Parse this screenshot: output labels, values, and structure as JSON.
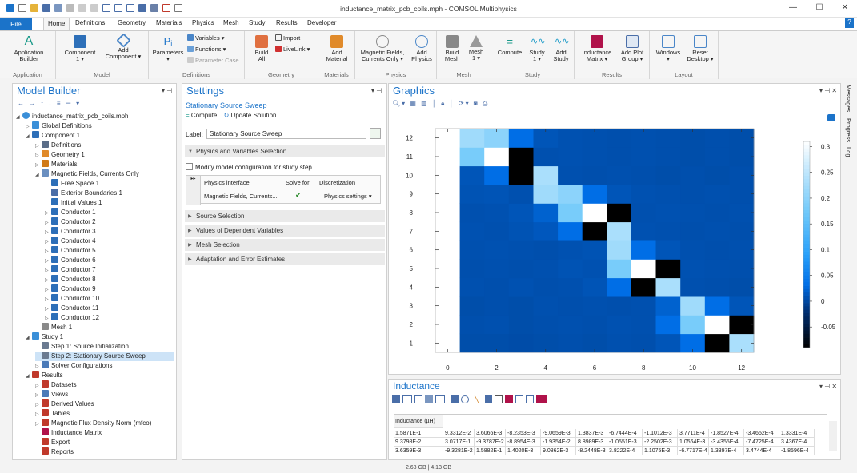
{
  "window": {
    "title": "inductance_matrix_pcb_coils.mph - COMSOL Multiphysics",
    "minimize": "—",
    "maximize": "☐",
    "close": "✕",
    "help": "?"
  },
  "menu": {
    "file": "File",
    "tabs": [
      "Home",
      "Definitions",
      "Geometry",
      "Materials",
      "Physics",
      "Mesh",
      "Study",
      "Results",
      "Developer"
    ]
  },
  "ribbon": {
    "groups": [
      "Application",
      "Model",
      "Definitions",
      "Geometry",
      "Materials",
      "Physics",
      "Mesh",
      "Study",
      "Results",
      "Layout"
    ],
    "application_builder": [
      "Application",
      "Builder"
    ],
    "component": [
      "Component",
      "1 ▾"
    ],
    "add_component": [
      "Add",
      "Component ▾"
    ],
    "parameters": [
      "Parameters",
      "▾"
    ],
    "variables": "Variables ▾",
    "functions": "Functions ▾",
    "parameter_case": "Parameter Case",
    "build_all": [
      "Build",
      "All"
    ],
    "import": "Import",
    "livelink": "LiveLink ▾",
    "add_material": [
      "Add",
      "Material"
    ],
    "magnetic_fields": [
      "Magnetic Fields,",
      "Currents Only ▾"
    ],
    "add_physics": [
      "Add",
      "Physics"
    ],
    "build_mesh": [
      "Build",
      "Mesh"
    ],
    "mesh": [
      "Mesh",
      "1 ▾"
    ],
    "compute": "Compute",
    "study": [
      "Study",
      "1 ▾"
    ],
    "add_study": [
      "Add",
      "Study"
    ],
    "inductance_matrix": [
      "Inductance",
      "Matrix ▾"
    ],
    "add_plot_group": [
      "Add Plot",
      "Group ▾"
    ],
    "windows": [
      "Windows",
      "▾"
    ],
    "reset_desktop": [
      "Reset",
      "Desktop ▾"
    ]
  },
  "model_builder": {
    "title": "Model Builder",
    "root": "inductance_matrix_pcb_coils.mph",
    "items": [
      {
        "label": "Global Definitions",
        "level": 1,
        "color": "#3a8fd8"
      },
      {
        "label": "Component 1",
        "level": 1,
        "color": "#2d6fb8"
      },
      {
        "label": "Definitions",
        "level": 2,
        "color": "#5a6d88"
      },
      {
        "label": "Geometry 1",
        "level": 2,
        "color": "#e08a2a"
      },
      {
        "label": "Materials",
        "level": 2,
        "color": "#d07a18"
      },
      {
        "label": "Magnetic Fields, Currents Only",
        "level": 2,
        "color": "#6a8fc0"
      },
      {
        "label": "Free Space 1",
        "level": 3,
        "color": "#2d6fb8"
      },
      {
        "label": "Exterior Boundaries 1",
        "level": 3,
        "color": "#4a6ea8"
      },
      {
        "label": "Initial Values 1",
        "level": 3,
        "color": "#2d6fb8"
      },
      {
        "label": "Conductor 1",
        "level": 3,
        "color": "#2d6fb8"
      },
      {
        "label": "Conductor 2",
        "level": 3,
        "color": "#2d6fb8"
      },
      {
        "label": "Conductor 3",
        "level": 3,
        "color": "#2d6fb8"
      },
      {
        "label": "Conductor 4",
        "level": 3,
        "color": "#2d6fb8"
      },
      {
        "label": "Conductor 5",
        "level": 3,
        "color": "#2d6fb8"
      },
      {
        "label": "Conductor 6",
        "level": 3,
        "color": "#2d6fb8"
      },
      {
        "label": "Conductor 7",
        "level": 3,
        "color": "#2d6fb8"
      },
      {
        "label": "Conductor 8",
        "level": 3,
        "color": "#2d6fb8"
      },
      {
        "label": "Conductor 9",
        "level": 3,
        "color": "#2d6fb8"
      },
      {
        "label": "Conductor 10",
        "level": 3,
        "color": "#2d6fb8"
      },
      {
        "label": "Conductor 11",
        "level": 3,
        "color": "#2d6fb8"
      },
      {
        "label": "Conductor 12",
        "level": 3,
        "color": "#2d6fb8"
      },
      {
        "label": "Mesh 1",
        "level": 2,
        "color": "#8a8a8a"
      },
      {
        "label": "Study 1",
        "level": 1,
        "color": "#3a8fd8"
      },
      {
        "label": "Step 1: Source Initialization",
        "level": 2,
        "color": "#6a7a90"
      },
      {
        "label": "Step 2: Stationary Source Sweep",
        "level": 2,
        "color": "#6a7a90",
        "selected": true
      },
      {
        "label": "Solver Configurations",
        "level": 2,
        "color": "#4a7ab8"
      },
      {
        "label": "Results",
        "level": 1,
        "color": "#c0392b"
      },
      {
        "label": "Datasets",
        "level": 2,
        "color": "#c0392b"
      },
      {
        "label": "Views",
        "level": 2,
        "color": "#4a7ab8"
      },
      {
        "label": "Derived Values",
        "level": 2,
        "color": "#c0392b"
      },
      {
        "label": "Tables",
        "level": 2,
        "color": "#c0392b"
      },
      {
        "label": "Magnetic Flux Density Norm (mfco)",
        "level": 2,
        "color": "#c0392b"
      },
      {
        "label": "Inductance Matrix",
        "level": 2,
        "color": "#b0124a"
      },
      {
        "label": "Export",
        "level": 2,
        "color": "#c0392b"
      },
      {
        "label": "Reports",
        "level": 2,
        "color": "#c0392b"
      }
    ]
  },
  "settings": {
    "title": "Settings",
    "subtitle": "Stationary Source Sweep",
    "compute": "Compute",
    "update_solution": "Update Solution",
    "label_caption": "Label:",
    "label_value": "Stationary Source Sweep",
    "section_physics": "Physics and Variables Selection",
    "modify_checkbox": "Modify model configuration for study step",
    "table_headers": [
      "Physics interface",
      "Solve for",
      "Discretization"
    ],
    "table_row": [
      "Magnetic Fields, Currents...",
      "✔",
      "Physics settings ▾"
    ],
    "sections": [
      "Source Selection",
      "Values of Dependent Variables",
      "Mesh Selection",
      "Adaptation and Error Estimates"
    ]
  },
  "graphics": {
    "title": "Graphics"
  },
  "side_tabs": [
    "Messages",
    "Progress",
    "Log"
  ],
  "chart_data": {
    "type": "heatmap",
    "x_ticks": [
      0,
      2,
      4,
      6,
      8,
      10,
      12
    ],
    "y_ticks": [
      1,
      2,
      3,
      4,
      5,
      6,
      7,
      8,
      9,
      10,
      11,
      12
    ],
    "xlim": [
      -0.5,
      12.5
    ],
    "ylim": [
      0.5,
      12.5
    ],
    "colorbar_ticks": [
      0.3,
      0.25,
      0.2,
      0.15,
      0.1,
      0.05,
      0,
      -0.05
    ],
    "colorbar_range": [
      -0.09,
      0.31
    ],
    "colormap": "cyan-blue-black (high values white)",
    "matrix_rows_from_y1": [
      [
        0.004,
        0.004,
        0.003,
        0.004,
        0.005,
        0.004,
        0.006,
        0.005,
        0.01,
        0.03,
        -0.09,
        0.23
      ],
      [
        0.005,
        0.006,
        0.004,
        0.005,
        0.006,
        0.005,
        0.007,
        0.006,
        0.03,
        0.18,
        0.31,
        -0.09
      ],
      [
        0.004,
        0.005,
        0.004,
        0.006,
        0.005,
        0.006,
        0.005,
        0.006,
        0.02,
        0.22,
        0.03,
        0.01
      ],
      [
        0.006,
        0.005,
        0.007,
        0.005,
        0.006,
        0.009,
        0.03,
        -0.09,
        0.23,
        0.006,
        0.005,
        0.004
      ],
      [
        0.005,
        0.006,
        0.005,
        0.006,
        0.008,
        0.007,
        0.18,
        0.31,
        -0.09,
        0.007,
        0.006,
        0.005
      ],
      [
        0.006,
        0.007,
        0.006,
        0.005,
        0.007,
        0.008,
        0.22,
        0.03,
        0.01,
        0.006,
        0.005,
        0.006
      ],
      [
        0.007,
        0.006,
        0.008,
        0.012,
        0.03,
        -0.09,
        0.23,
        0.007,
        0.006,
        0.005,
        0.006,
        0.005
      ],
      [
        0.006,
        0.007,
        0.01,
        0.02,
        0.18,
        0.31,
        -0.09,
        0.006,
        0.007,
        0.006,
        0.005,
        0.006
      ],
      [
        0.008,
        0.009,
        0.006,
        0.22,
        0.2,
        0.03,
        0.01,
        0.007,
        0.006,
        0.005,
        0.006,
        0.005
      ],
      [
        0.01,
        0.03,
        -0.09,
        0.23,
        0.006,
        0.005,
        0.006,
        0.005,
        0.004,
        0.005,
        0.004,
        0.005
      ],
      [
        0.18,
        0.31,
        -0.09,
        0.006,
        0.007,
        0.006,
        0.005,
        0.006,
        0.005,
        0.004,
        0.005,
        0.004
      ],
      [
        0.22,
        0.2,
        0.03,
        0.01,
        0.007,
        0.006,
        0.005,
        0.006,
        0.005,
        0.004,
        0.005,
        0.004
      ]
    ]
  },
  "inductance": {
    "title": "Inductance",
    "header": "Inductance (µH)",
    "rows": [
      [
        "1.5871E-1",
        "9.3312E-2",
        "3.6066E-3",
        "-8.2353E-3",
        "-9.0659E-3",
        "1.3837E-3",
        "-6.7444E-4",
        "-1.1012E-3",
        "3.7711E-4",
        "-1.8527E-4",
        "-3.4652E-4",
        "1.3331E-4"
      ],
      [
        "9.3798E-2",
        "3.0717E-1",
        "-9.3787E-2",
        "-8.8954E-3",
        "-1.9354E-2",
        "8.8989E-3",
        "-1.0551E-3",
        "-2.2502E-3",
        "1.0564E-3",
        "-3.4355E-4",
        "-7.4725E-4",
        "3.4367E-4"
      ],
      [
        "3.6359E-3",
        "-9.3281E-2",
        "1.5882E-1",
        "1.4020E-3",
        "9.0862E-3",
        "-8.2448E-3",
        "3.8222E-4",
        "1.1075E-3",
        "-6.7717E-4",
        "1.3397E-4",
        "3.4744E-4",
        "-1.8596E-4"
      ]
    ]
  },
  "status": {
    "memory": "2.68 GB | 4.13 GB"
  }
}
